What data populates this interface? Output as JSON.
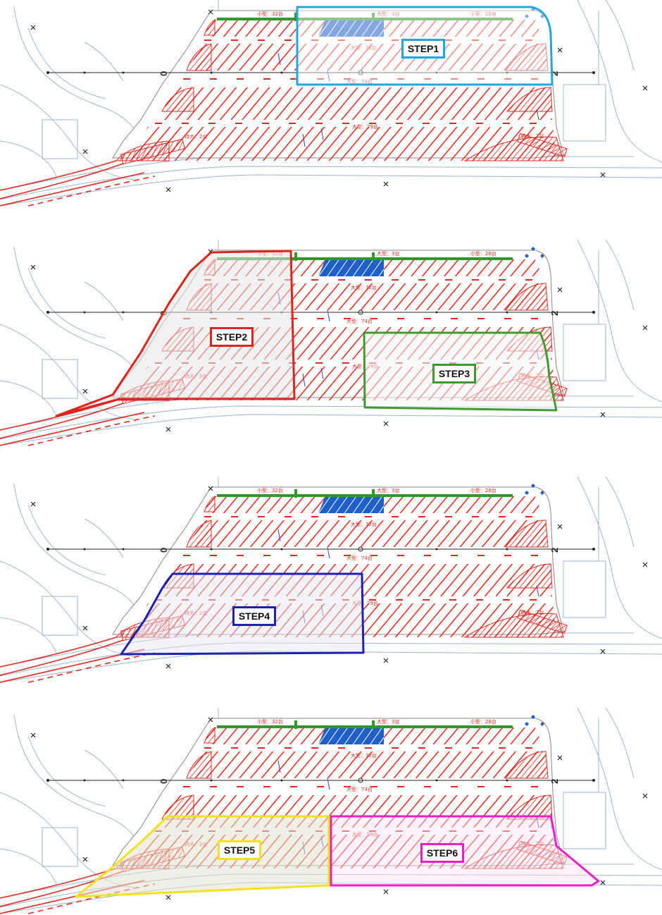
{
  "colors": {
    "hatch": "#e8281e",
    "green_bar": "#2e9a2a",
    "blue_zone": "#1f5fc8",
    "base_line": "#9bb7d0",
    "step1": "#1ea7e0",
    "step2": "#e0231b",
    "step3": "#3f9a2f",
    "step4": "#1c22b8",
    "step5": "#f2e21c",
    "step6": "#e81ec8"
  },
  "parking_labels": {
    "small_32": "小型：32台",
    "large_3": "大型：3台",
    "small_28": "小型：28台",
    "large_32": "大型：32台",
    "large_74": "大型：74台",
    "large_29": "大型：29台",
    "special_2": "特大：2台"
  },
  "axis_marks": {
    "left": "0",
    "right": "2"
  },
  "panels": [
    {
      "steps": [
        {
          "label": "STEP1",
          "color": "step1"
        }
      ]
    },
    {
      "steps": [
        {
          "label": "STEP2",
          "color": "step2"
        },
        {
          "label": "STEP3",
          "color": "step3"
        }
      ]
    },
    {
      "steps": [
        {
          "label": "STEP4",
          "color": "step4"
        }
      ]
    },
    {
      "steps": [
        {
          "label": "STEP5",
          "color": "step5"
        },
        {
          "label": "STEP6",
          "color": "step6"
        }
      ]
    }
  ]
}
